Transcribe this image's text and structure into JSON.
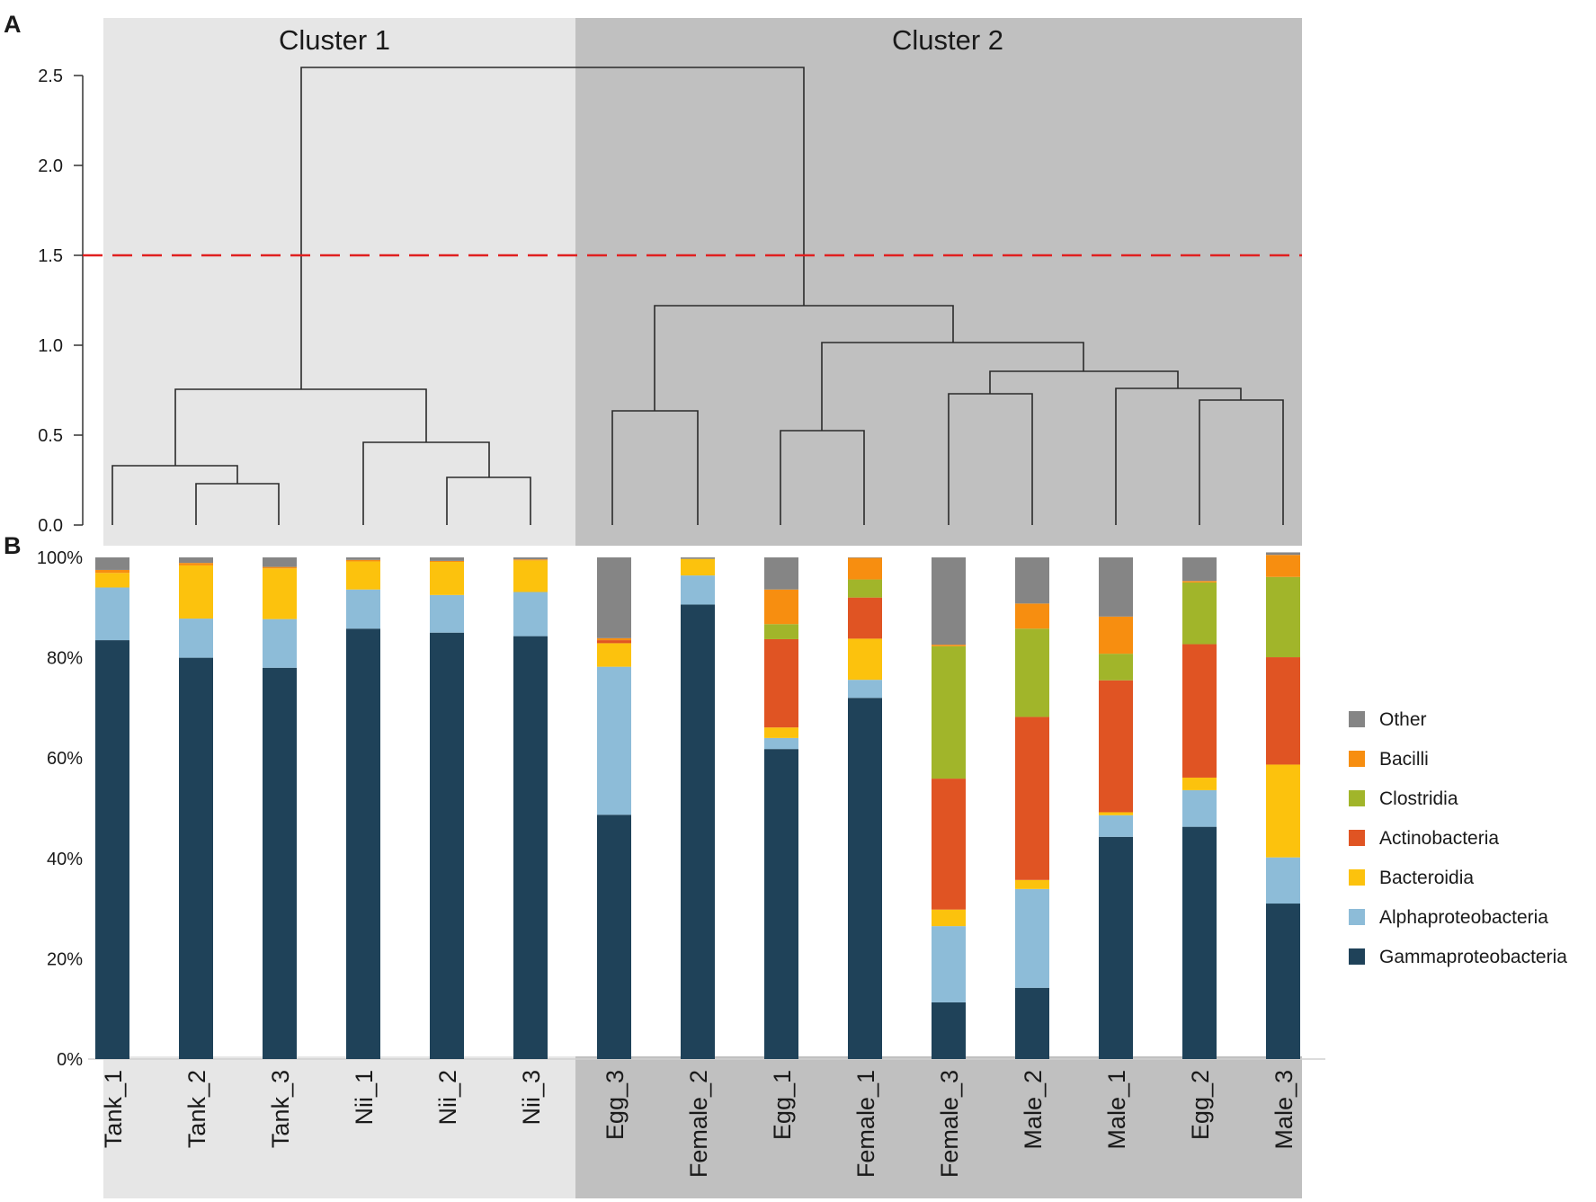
{
  "panels": {
    "a": "A",
    "b": "B"
  },
  "clusters": [
    {
      "label": "Cluster 1",
      "color": "#e6e6e6"
    },
    {
      "label": "Cluster 2",
      "color": "#c0c0c0"
    }
  ],
  "dendrogram": {
    "cut_height": 1.5,
    "cut_color": "#e02020",
    "yticks": [
      "0.0",
      "0.5",
      "1.0",
      "1.5",
      "2.0",
      "2.5"
    ],
    "ylim": [
      0,
      2.5
    ]
  },
  "chart_data": {
    "type": "bar",
    "stacked": true,
    "title": "",
    "xlabel": "",
    "ylabel": "",
    "ylim": [
      0,
      100
    ],
    "ytick_labels": [
      "0%",
      "20%",
      "40%",
      "60%",
      "80%",
      "100%"
    ],
    "categories": [
      "Tank_1",
      "Tank_2",
      "Tank_3",
      "Nii_1",
      "Nii_2",
      "Nii_3",
      "Egg_3",
      "Female_2",
      "Egg_1",
      "Female_1",
      "Female_3",
      "Male_2",
      "Male_1",
      "Egg_2",
      "Male_3"
    ],
    "series": [
      {
        "name": "Gammaproteobacteria",
        "color": "#1f4259",
        "values": [
          83.5,
          80,
          78,
          85.8,
          85,
          84.3,
          48.7,
          90.6,
          61.8,
          72,
          11.3,
          14.2,
          44.3,
          46.3,
          31
        ]
      },
      {
        "name": "Alphaproteobacteria",
        "color": "#8dbcd8",
        "values": [
          10.5,
          7.8,
          9.7,
          7.8,
          7.5,
          8.8,
          29.5,
          5.8,
          2.2,
          3.6,
          15.2,
          19.7,
          4.3,
          7.3,
          9.2
        ]
      },
      {
        "name": "Bacteroidia",
        "color": "#fcc20d",
        "values": [
          2.9,
          10.6,
          10.1,
          5.6,
          6.6,
          6.3,
          4.7,
          3.3,
          2.1,
          8.2,
          3.3,
          1.8,
          0.6,
          2.5,
          18.5
        ]
      },
      {
        "name": "Actinobacteria",
        "color": "#e05423",
        "values": [
          0,
          0,
          0,
          0,
          0,
          0,
          0.6,
          0,
          17.6,
          8.2,
          26.1,
          32.5,
          26.3,
          26.6,
          21.4
        ]
      },
      {
        "name": "Clostridia",
        "color": "#a1b52a",
        "values": [
          0,
          0,
          0,
          0,
          0,
          0,
          0,
          0,
          3,
          3.6,
          26.4,
          17.6,
          5.3,
          12.3,
          16
        ]
      },
      {
        "name": "Bacilli",
        "color": "#f78e10",
        "values": [
          0.6,
          0.5,
          0.3,
          0.3,
          0.2,
          0.2,
          0.4,
          0,
          6.9,
          4.3,
          0.3,
          5,
          7.4,
          0.3,
          4.4
        ]
      },
      {
        "name": "Other",
        "color": "#858585",
        "values": [
          2.5,
          1.1,
          1.9,
          0.5,
          0.7,
          0.4,
          16.1,
          0.3,
          6.4,
          0.1,
          17.4,
          9.2,
          11.8,
          4.7,
          0.5
        ]
      }
    ],
    "legend_order": [
      "Other",
      "Bacilli",
      "Clostridia",
      "Actinobacteria",
      "Bacteroidia",
      "Alphaproteobacteria",
      "Gammaproteobacteria"
    ],
    "legend_position": "right"
  }
}
